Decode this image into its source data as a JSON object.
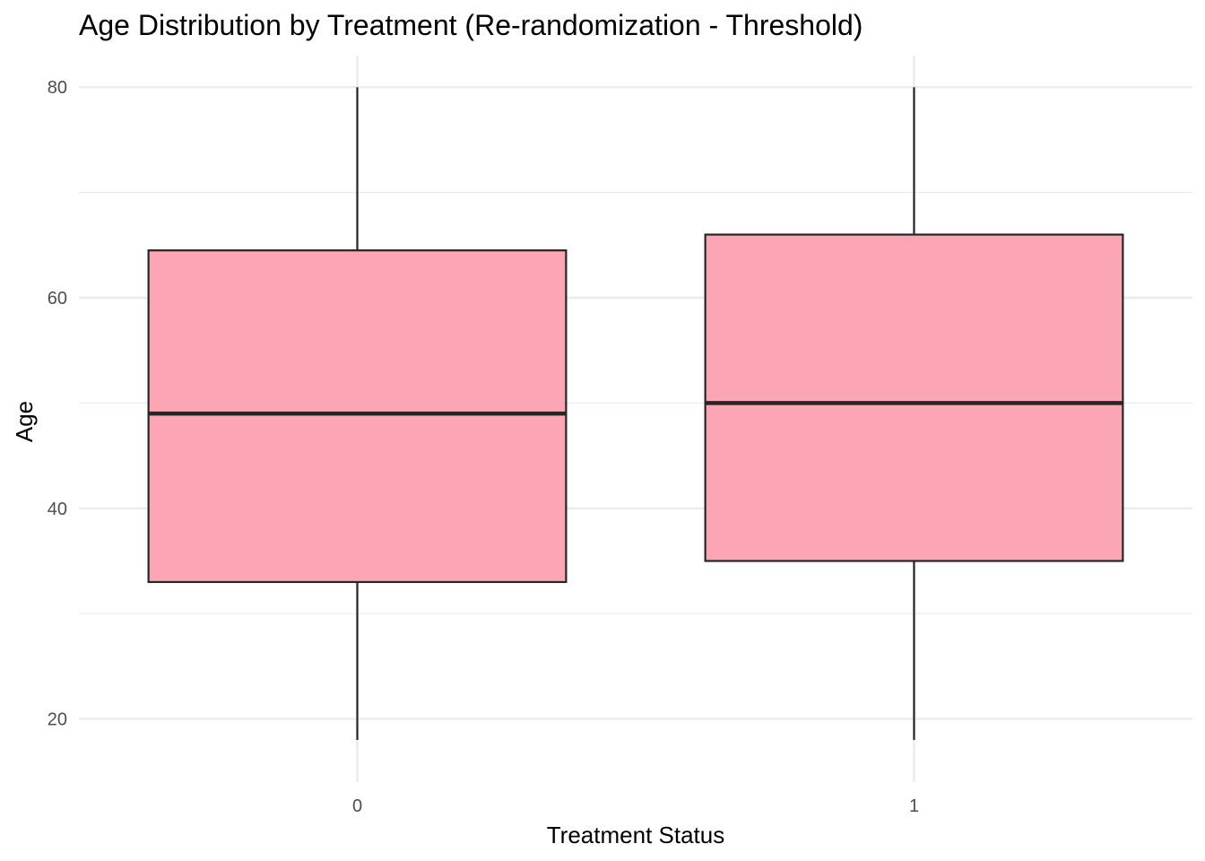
{
  "chart_data": {
    "type": "boxplot",
    "title": "Age Distribution by Treatment (Re-randomization - Threshold)",
    "xlabel": "Treatment Status",
    "ylabel": "Age",
    "categories": [
      "0",
      "1"
    ],
    "boxes": [
      {
        "category": "0",
        "min": 18,
        "q1": 33,
        "median": 49,
        "q3": 64.5,
        "max": 80
      },
      {
        "category": "1",
        "min": 18,
        "q1": 35,
        "median": 50,
        "q3": 66,
        "max": 80
      }
    ],
    "ylim": [
      14,
      83
    ],
    "yticks": [
      20,
      40,
      60,
      80
    ],
    "ytick_labels": [
      "20",
      "40",
      "60",
      "80"
    ],
    "yminor": [
      30,
      50,
      70
    ],
    "grid": true,
    "legend": "none",
    "colors": {
      "fill": "#fca5b5",
      "stroke": "#262626",
      "grid": "#ebebeb",
      "text": "#4d4d4d"
    }
  }
}
